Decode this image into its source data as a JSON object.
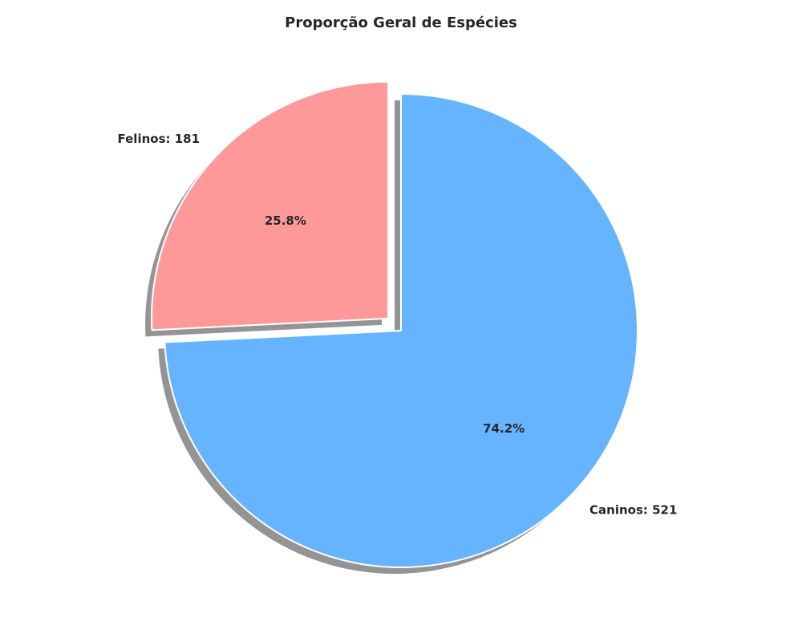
{
  "chart_data": {
    "type": "pie",
    "title": "Proporção Geral de Espécies",
    "slices": [
      {
        "label": "Caninos: 521",
        "count": 521,
        "percent_label": "74.2%",
        "color": "#66b3ff",
        "explode": false
      },
      {
        "label": "Felinos: 181",
        "count": 181,
        "percent_label": "25.8%",
        "color": "#ff9999",
        "explode": true
      }
    ],
    "start_angle_deg": 90,
    "direction": "clockwise",
    "shadow": true
  }
}
